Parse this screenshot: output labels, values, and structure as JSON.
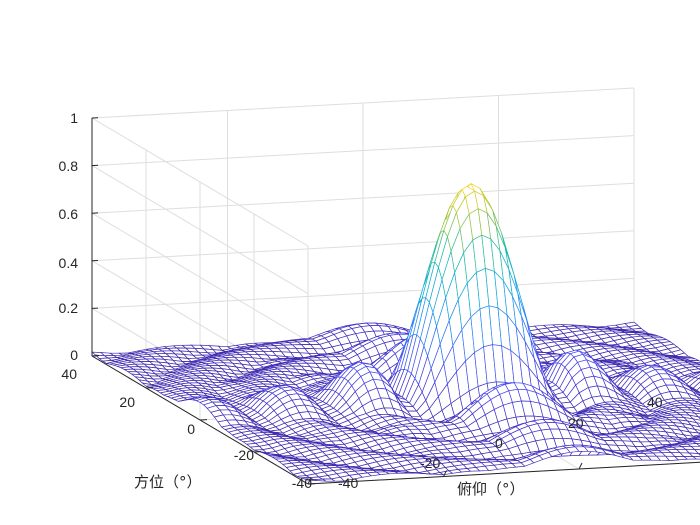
{
  "chart_data": {
    "type": "surface",
    "title": "",
    "mesh_style": "wireframe",
    "colormap": "parula",
    "xlabel": "俯仰（°）",
    "ylabel": "方位（°）",
    "zlabel": "",
    "xlim": [
      -40,
      40
    ],
    "ylim": [
      -40,
      40
    ],
    "zlim": [
      0,
      1
    ],
    "xticks": [
      "-40",
      "-20",
      "0",
      "20",
      "40"
    ],
    "yticks": [
      "-40",
      "-20",
      "0",
      "20",
      "40"
    ],
    "zticks": [
      "0",
      "0.2",
      "0.4",
      "0.6",
      "0.8",
      "1"
    ],
    "grid": true,
    "peak": {
      "x": 0,
      "y": 0,
      "z": 0.93
    },
    "main_lobe_halfwidth_deg": 5,
    "sidelobe_level": 0.25,
    "description_values": {
      "grid_points_per_axis": 61,
      "sample_spacing_deg": 1.33
    }
  }
}
